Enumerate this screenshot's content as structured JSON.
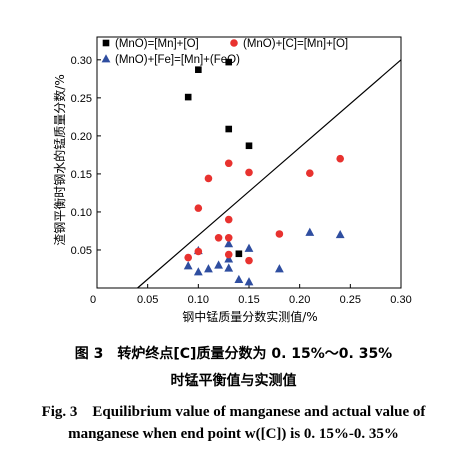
{
  "chart_data": {
    "type": "scatter",
    "xlabel": "钢中锰质量分数实测值/%",
    "ylabel": "渣钢平衡时钢水的锰质量分数/%",
    "xlim": [
      0,
      0.3
    ],
    "ylim": [
      0,
      0.33
    ],
    "x_ticks": [
      "0",
      "0.05",
      "0.10",
      "0.15",
      "0.20",
      "0.25",
      "0.30"
    ],
    "y_ticks": [
      "0.05",
      "0.10",
      "0.15",
      "0.20",
      "0.25",
      "0.30"
    ],
    "x_tick_values": [
      0,
      0.05,
      0.1,
      0.15,
      0.2,
      0.25,
      0.3
    ],
    "y_tick_values": [
      0.05,
      0.1,
      0.15,
      0.2,
      0.25,
      0.3
    ],
    "reference_line": {
      "x": [
        0.04,
        0.3
      ],
      "y": [
        0.0,
        0.3
      ]
    },
    "legend_position": "top",
    "grid": false,
    "series": [
      {
        "name": "(MnO)=[Mn]+[O]",
        "marker": "square",
        "color": "#000000",
        "x": [
          0.09,
          0.1,
          0.13,
          0.13,
          0.14,
          0.15
        ],
        "y": [
          0.251,
          0.287,
          0.297,
          0.209,
          0.045,
          0.187
        ]
      },
      {
        "name": "(MnO)+[C]=[Mn]+[O]",
        "marker": "circle",
        "color": "#e8322f",
        "x": [
          0.09,
          0.1,
          0.1,
          0.11,
          0.12,
          0.13,
          0.13,
          0.13,
          0.13,
          0.15,
          0.15,
          0.18,
          0.21,
          0.24
        ],
        "y": [
          0.04,
          0.048,
          0.105,
          0.144,
          0.066,
          0.164,
          0.09,
          0.066,
          0.044,
          0.152,
          0.036,
          0.071,
          0.151,
          0.17
        ]
      },
      {
        "name": "(MnO)+[Fe]=[Mn]+(FeO)",
        "marker": "triangle",
        "color": "#2f4ea0",
        "x": [
          0.09,
          0.1,
          0.1,
          0.11,
          0.12,
          0.13,
          0.13,
          0.13,
          0.14,
          0.15,
          0.15,
          0.18,
          0.21,
          0.24
        ],
        "y": [
          0.029,
          0.049,
          0.021,
          0.025,
          0.03,
          0.058,
          0.038,
          0.026,
          0.011,
          0.052,
          0.008,
          0.025,
          0.073,
          0.07
        ]
      }
    ]
  },
  "caption": {
    "cn_line1": "图 3　转炉终点[C]质量分数为 0. 15%～0. 35%",
    "cn_line2": "时锰平衡值与实测值",
    "en_line1": "Fig. 3　Equilibrium value of manganese and actual value of",
    "en_line2": "manganese when end point w([C]) is 0. 15%-0. 35%"
  }
}
